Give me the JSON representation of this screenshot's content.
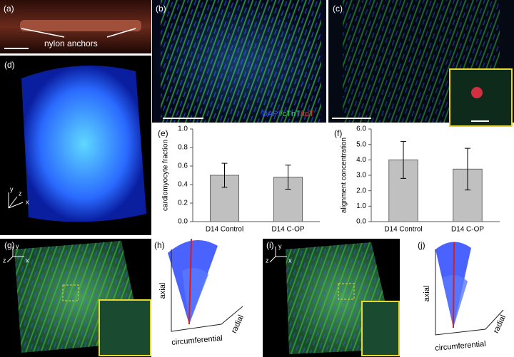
{
  "panels": {
    "a": {
      "label": "(a)",
      "annotation": "nylon anchors"
    },
    "b": {
      "label": "(b)",
      "stain_legend": [
        {
          "text": "DAPI",
          "color": "#3a4cff"
        },
        {
          "text": "/cTnT",
          "color": "#2ee05a"
        },
        {
          "text": "/tdT",
          "color": "#ff3030"
        }
      ]
    },
    "c": {
      "label": "(c)"
    },
    "d": {
      "label": "(d)",
      "axes": [
        "x",
        "y",
        "z"
      ]
    },
    "g": {
      "label": "(g)",
      "axes": [
        "x",
        "y",
        "z"
      ]
    },
    "h": {
      "label": "(h)",
      "axes": [
        "axial",
        "circumferential",
        "radial"
      ]
    },
    "i": {
      "label": "(i)",
      "axes": [
        "x",
        "y",
        "z"
      ]
    },
    "j": {
      "label": "(j)",
      "axes": [
        "axial",
        "circumferential",
        "radial"
      ]
    }
  },
  "chart_data": [
    {
      "type": "bar",
      "label": "(e)",
      "y_label": "cardiomyocyte fraction",
      "categories": [
        "D14 Control",
        "D14 C-OP"
      ],
      "values": [
        0.5,
        0.48
      ],
      "errors": [
        0.13,
        0.13
      ],
      "color": "#c0c0c0",
      "ylim": [
        0,
        1
      ],
      "yticks": [
        {
          "value": 0,
          "label": "0.0"
        },
        0.2,
        0.4,
        0.6,
        0.8,
        {
          "value": 1,
          "label": "1.0"
        }
      ],
      "grid": false
    },
    {
      "type": "bar",
      "label": "(f)",
      "y_label": "alignment concentration",
      "categories": [
        "D14 Control",
        "D14 C-OP"
      ],
      "values": [
        4.0,
        3.4
      ],
      "errors": [
        1.2,
        1.35
      ],
      "color": "#c0c0c0",
      "ylim": [
        0,
        6
      ],
      "yticks": [
        {
          "value": 0,
          "label": "0.0"
        },
        {
          "value": 1,
          "label": "1.0"
        },
        {
          "value": 2,
          "label": "2.0"
        },
        {
          "value": 3,
          "label": "3.0"
        },
        {
          "value": 4,
          "label": "4.0"
        },
        {
          "value": 5,
          "label": "5.0"
        },
        {
          "value": 6,
          "label": "6.0"
        }
      ],
      "grid": false
    }
  ]
}
